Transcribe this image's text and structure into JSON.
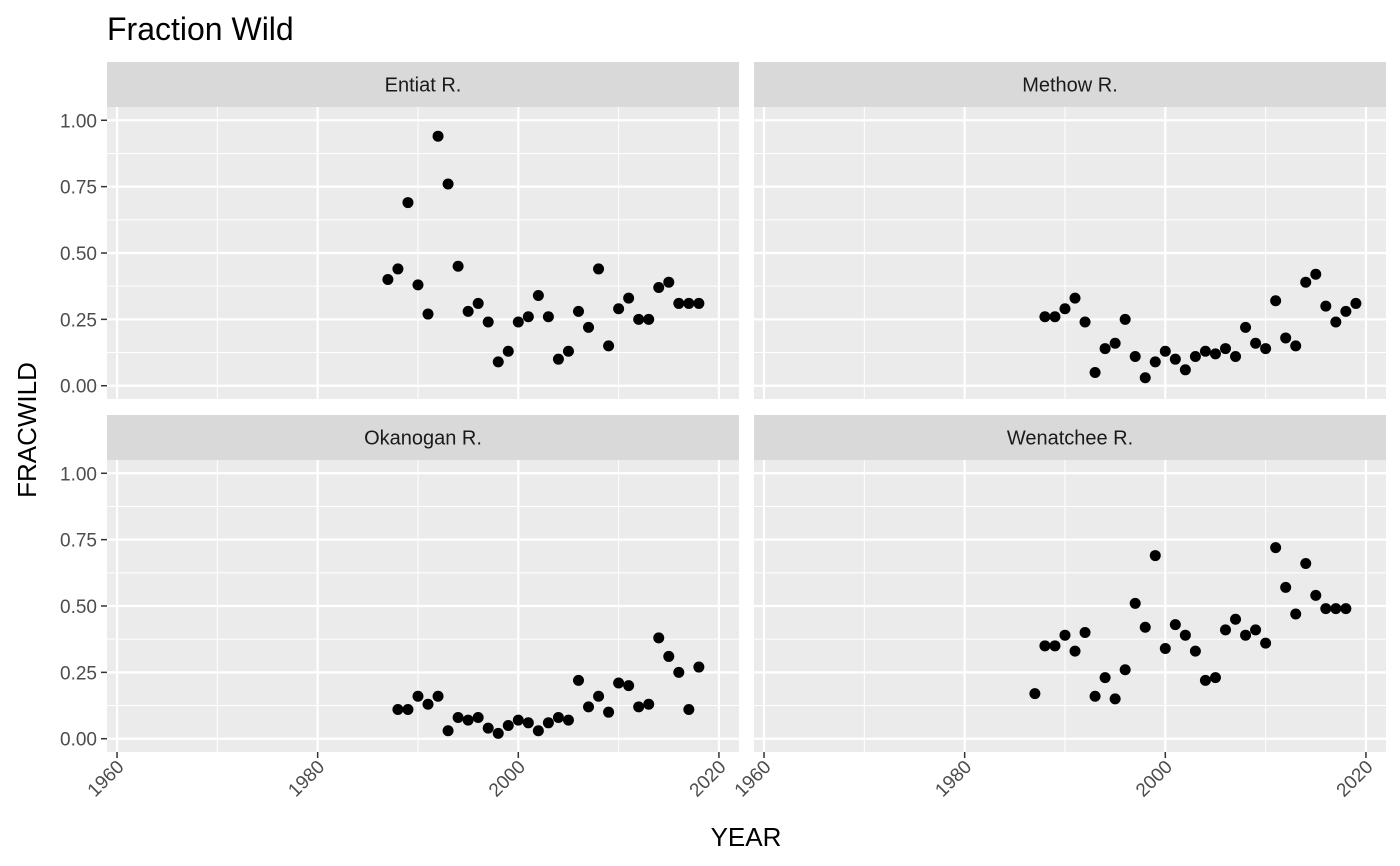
{
  "chart_data": {
    "type": "scatter",
    "title": "Fraction Wild",
    "xlabel": "YEAR",
    "ylabel": "FRACWILD",
    "xlim": [
      1959,
      2022
    ],
    "ylim": [
      -0.05,
      1.05
    ],
    "xticks": [
      1960,
      1980,
      2000,
      2020
    ],
    "xticks_minor": [
      1970,
      1990,
      2010
    ],
    "yticks": [
      0.0,
      0.25,
      0.5,
      0.75,
      1.0
    ],
    "ytick_labels": [
      "0.00",
      "0.25",
      "0.50",
      "0.75",
      "1.00"
    ],
    "grid": true,
    "facets": [
      {
        "name": "Entiat R.",
        "x": [
          1987,
          1988,
          1989,
          1990,
          1991,
          1992,
          1993,
          1994,
          1995,
          1996,
          1997,
          1998,
          1999,
          2000,
          2001,
          2002,
          2003,
          2004,
          2005,
          2006,
          2007,
          2008,
          2009,
          2010,
          2011,
          2012,
          2013,
          2014,
          2015,
          2016,
          2017,
          2018
        ],
        "y": [
          0.4,
          0.44,
          0.69,
          0.38,
          0.27,
          0.94,
          0.76,
          0.45,
          0.28,
          0.31,
          0.24,
          0.09,
          0.13,
          0.24,
          0.26,
          0.34,
          0.26,
          0.1,
          0.13,
          0.28,
          0.22,
          0.44,
          0.15,
          0.29,
          0.33,
          0.25,
          0.25,
          0.37,
          0.39,
          0.31,
          0.31,
          0.31
        ]
      },
      {
        "name": "Methow R.",
        "x": [
          1988,
          1989,
          1990,
          1991,
          1992,
          1993,
          1994,
          1995,
          1996,
          1997,
          1998,
          1999,
          2000,
          2001,
          2002,
          2003,
          2004,
          2005,
          2006,
          2007,
          2008,
          2009,
          2010,
          2011,
          2012,
          2013,
          2014,
          2015,
          2016,
          2017,
          2018,
          2019
        ],
        "y": [
          0.26,
          0.26,
          0.29,
          0.33,
          0.24,
          0.05,
          0.14,
          0.16,
          0.25,
          0.11,
          0.03,
          0.09,
          0.13,
          0.1,
          0.06,
          0.11,
          0.13,
          0.12,
          0.14,
          0.11,
          0.22,
          0.16,
          0.14,
          0.32,
          0.18,
          0.15,
          0.39,
          0.42,
          0.3,
          0.24,
          0.28,
          0.31
        ]
      },
      {
        "name": "Okanogan R.",
        "x": [
          1988,
          1989,
          1990,
          1991,
          1992,
          1993,
          1994,
          1995,
          1996,
          1997,
          1998,
          1999,
          2000,
          2001,
          2002,
          2003,
          2004,
          2005,
          2006,
          2007,
          2008,
          2009,
          2010,
          2011,
          2012,
          2013,
          2014,
          2015,
          2016,
          2017,
          2018
        ],
        "y": [
          0.11,
          0.11,
          0.16,
          0.13,
          0.16,
          0.03,
          0.08,
          0.07,
          0.08,
          0.04,
          0.02,
          0.05,
          0.07,
          0.06,
          0.03,
          0.06,
          0.08,
          0.07,
          0.22,
          0.12,
          0.16,
          0.1,
          0.21,
          0.2,
          0.12,
          0.13,
          0.38,
          0.31,
          0.25,
          0.11,
          0.27
        ]
      },
      {
        "name": "Wenatchee R.",
        "x": [
          1987,
          1988,
          1989,
          1990,
          1991,
          1992,
          1993,
          1994,
          1995,
          1996,
          1997,
          1998,
          1999,
          2000,
          2001,
          2002,
          2003,
          2004,
          2005,
          2006,
          2007,
          2008,
          2009,
          2010,
          2011,
          2012,
          2013,
          2014,
          2015,
          2016,
          2017,
          2018
        ],
        "y": [
          0.17,
          0.35,
          0.35,
          0.39,
          0.33,
          0.4,
          0.16,
          0.23,
          0.15,
          0.26,
          0.51,
          0.42,
          0.69,
          0.34,
          0.43,
          0.39,
          0.33,
          0.22,
          0.23,
          0.41,
          0.45,
          0.39,
          0.41,
          0.36,
          0.72,
          0.57,
          0.47,
          0.66,
          0.54,
          0.49,
          0.49,
          0.49
        ]
      }
    ],
    "colors": {
      "panel_bg": "#ebebeb",
      "strip_bg": "#d9d9d9",
      "grid": "#ffffff",
      "point": "#000000",
      "tick": "#4d4d4d"
    }
  }
}
